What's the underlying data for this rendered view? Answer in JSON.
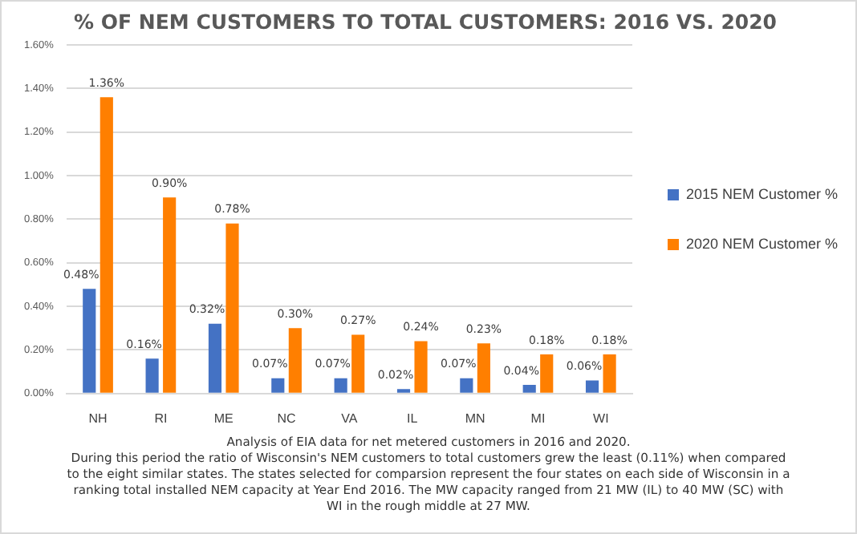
{
  "chart_data": {
    "type": "bar",
    "title": "% OF NEM CUSTOMERS TO TOTAL CUSTOMERS: 2016 VS. 2020",
    "categories": [
      "NH",
      "RI",
      "ME",
      "NC",
      "VA",
      "IL",
      "MN",
      "MI",
      "WI"
    ],
    "series": [
      {
        "name": "2015 NEM Customer %",
        "color": "#4472c4",
        "values": [
          0.48,
          0.16,
          0.32,
          0.07,
          0.07,
          0.02,
          0.07,
          0.04,
          0.06
        ],
        "value_labels": [
          "0.48%",
          "0.16%",
          "0.32%",
          "0.07%",
          "0.07%",
          "0.02%",
          "0.07%",
          "0.04%",
          "0.06%"
        ]
      },
      {
        "name": "2020 NEM Customer %",
        "color": "#ff7f00",
        "values": [
          1.36,
          0.9,
          0.78,
          0.3,
          0.27,
          0.24,
          0.23,
          0.18,
          0.18
        ],
        "value_labels": [
          "1.36%",
          "0.90%",
          "0.78%",
          "0.30%",
          "0.27%",
          "0.24%",
          "0.23%",
          "0.18%",
          "0.18%"
        ]
      }
    ],
    "ylim": [
      0,
      1.6
    ],
    "yticks": [
      {
        "value": 0,
        "label": "0.00%"
      },
      {
        "value": 0.2,
        "label": "0.20%"
      },
      {
        "value": 0.4,
        "label": "0.40%"
      },
      {
        "value": 0.6,
        "label": "0.60%"
      },
      {
        "value": 0.8,
        "label": "0.80%"
      },
      {
        "value": 1.0,
        "label": "1.00%"
      },
      {
        "value": 1.2,
        "label": "1.20%"
      },
      {
        "value": 1.4,
        "label": "1.40%"
      },
      {
        "value": 1.6,
        "label": "1.60%"
      }
    ],
    "grid": "y",
    "legend": "right",
    "annotations": [
      "Analysis of EIA data for net metered customers in 2016 and 2020.",
      "During this period the ratio of Wisconsin's NEM customers to total customers grew the least (0.11%) when compared to the eight similar states. The states selected for comparsion represent the four states on each side of Wisconsin in a ranking total installed NEM capacity at Year End 2016. The MW capacity ranged from 21 MW (IL) to 40 MW (SC) with WI in the rough middle at 27 MW."
    ]
  }
}
